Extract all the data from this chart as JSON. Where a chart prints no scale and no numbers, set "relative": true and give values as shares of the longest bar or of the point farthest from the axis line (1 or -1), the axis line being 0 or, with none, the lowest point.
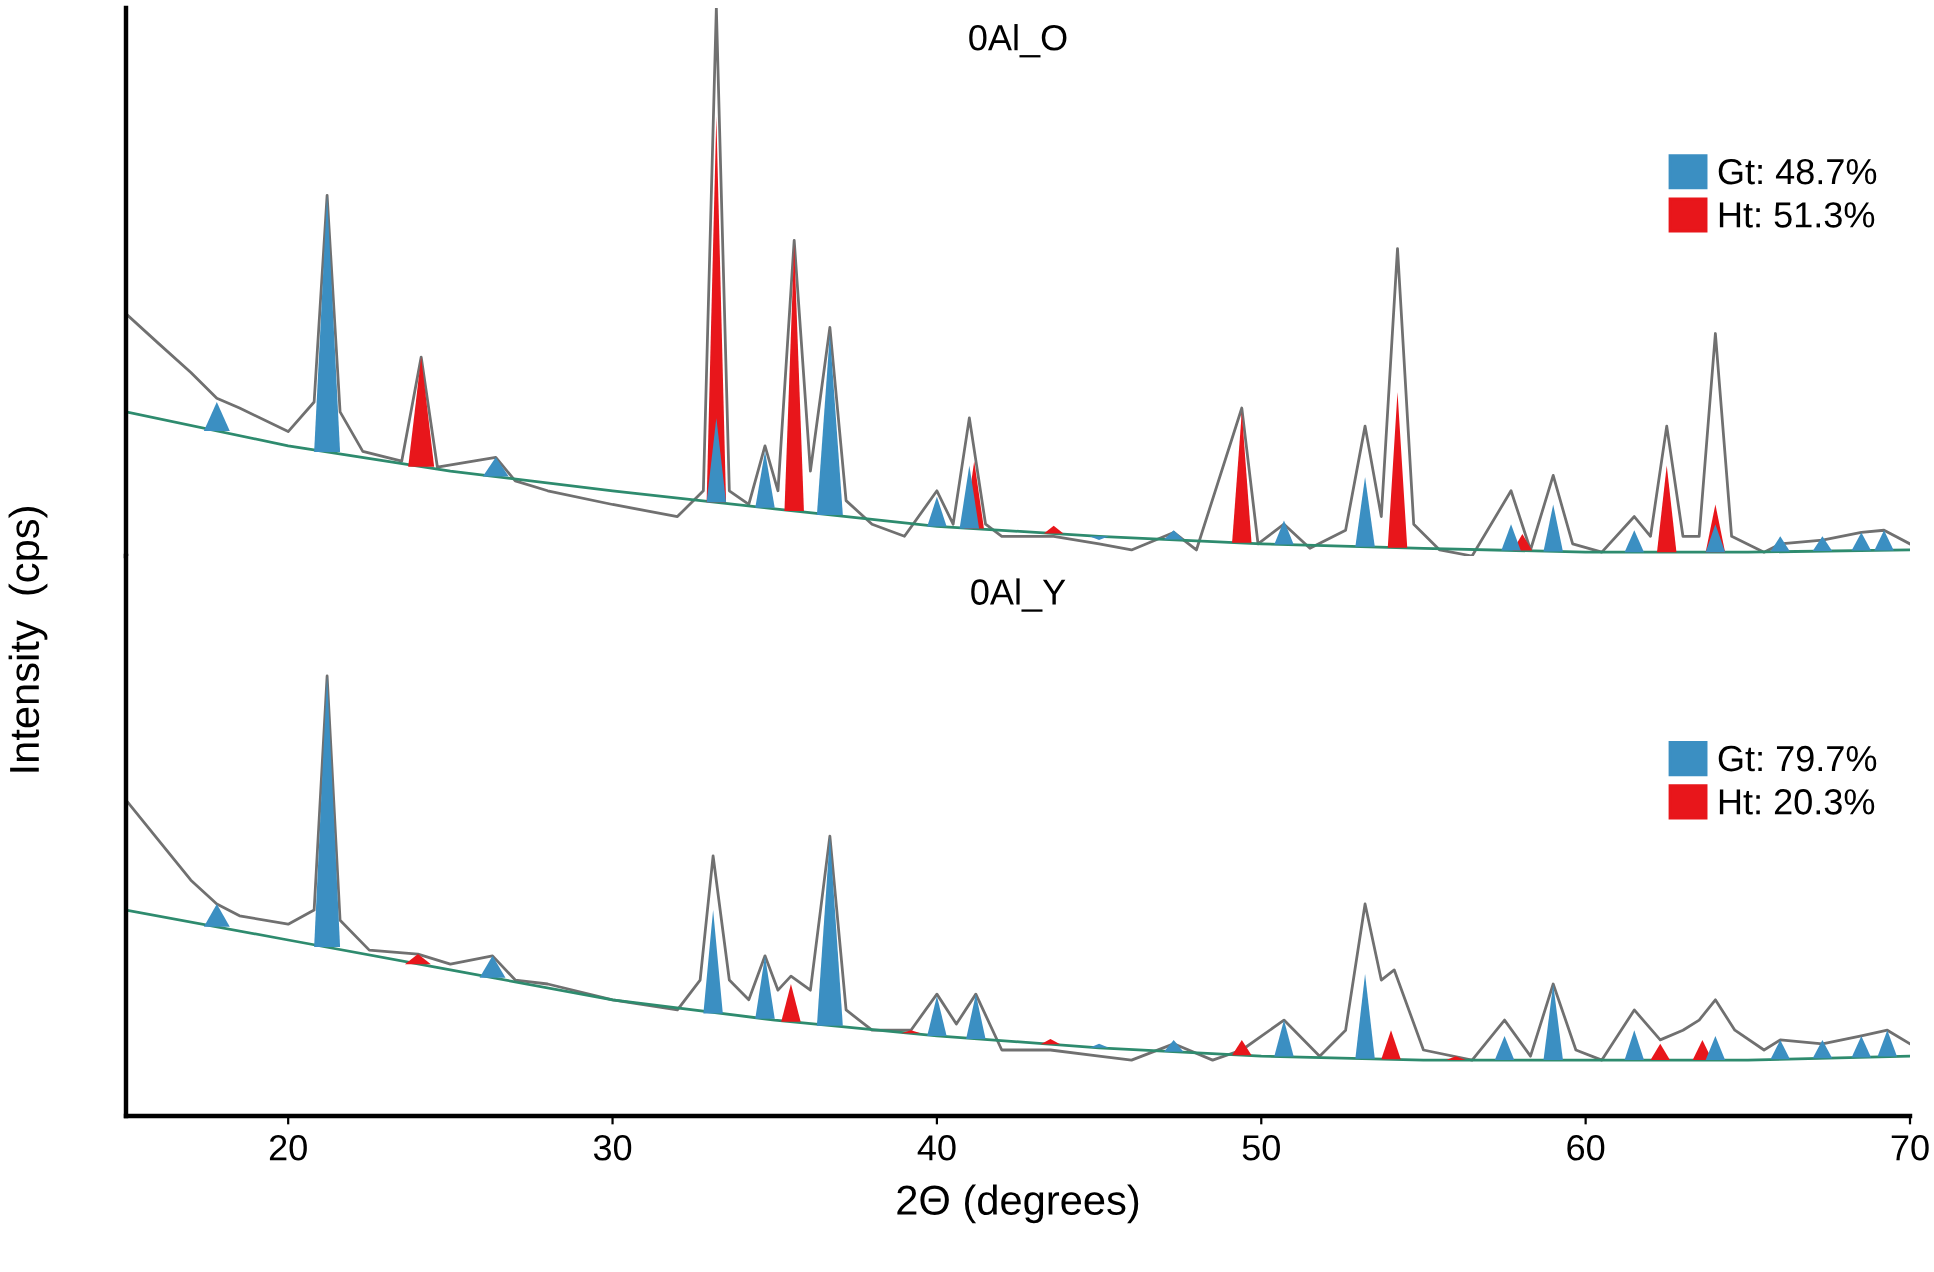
{
  "chart_data": [
    {
      "type": "area",
      "title": "0Al_O",
      "ylabel": "Intensity  (cps)",
      "relative": true,
      "xlim": [
        15,
        70
      ],
      "tick_labels": false,
      "legend": "top right",
      "grid": false,
      "series": [
        {
          "type": "line",
          "color": "#707070",
          "x": [
            15,
            16,
            17,
            17.8,
            18.5,
            20,
            20.8,
            21.2,
            21.6,
            22.3,
            23.5,
            24.1,
            24.6,
            26.4,
            27,
            28,
            30,
            32,
            32.8,
            33.2,
            33.6,
            34.2,
            34.7,
            35.1,
            35.6,
            36.1,
            36.7,
            37.2,
            38,
            39,
            40,
            40.5,
            41,
            41.5,
            42,
            43.6,
            45,
            46,
            47.3,
            48,
            49.4,
            49.9,
            50.7,
            51.5,
            52.6,
            53.2,
            53.7,
            54.2,
            54.7,
            55.5,
            56.5,
            57.7,
            58.3,
            59,
            59.6,
            60.5,
            61.5,
            62,
            62.5,
            63,
            63.5,
            64,
            64.5,
            65.5,
            66,
            67.3,
            68.5,
            69.2,
            70
          ],
          "values": [
            0.442,
            0.388,
            0.335,
            0.288,
            0.27,
            0.227,
            0.281,
            0.658,
            0.263,
            0.191,
            0.173,
            0.363,
            0.162,
            0.18,
            0.137,
            0.119,
            0.094,
            0.072,
            0.119,
            1.0,
            0.119,
            0.094,
            0.201,
            0.119,
            0.576,
            0.155,
            0.417,
            0.101,
            0.058,
            0.036,
            0.119,
            0.058,
            0.252,
            0.058,
            0.036,
            0.036,
            0.022,
            0.011,
            0.043,
            0.011,
            0.27,
            0.022,
            0.058,
            0.014,
            0.047,
            0.237,
            0.072,
            0.561,
            0.058,
            0.011,
            0.0,
            0.119,
            0.011,
            0.147,
            0.022,
            0.007,
            0.072,
            0.036,
            0.237,
            0.036,
            0.036,
            0.406,
            0.036,
            0.007,
            0.022,
            0.029,
            0.043,
            0.047,
            0.022
          ]
        },
        {
          "name": "Ht: 51.3%",
          "color": "#e8161b",
          "x": [
            23.7,
            24.1,
            24.5,
            24.55,
            32.9,
            33.2,
            33.5,
            33.55,
            35.3,
            35.6,
            35.9,
            35.95,
            40.85,
            41.15,
            41.45,
            41.5,
            43.3,
            43.6,
            43.9,
            43.95,
            49.1,
            49.4,
            49.7,
            49.75,
            53.9,
            54.2,
            54.5,
            54.55,
            57.75,
            58.05,
            58.35,
            58.4,
            62.2,
            62.5,
            62.8,
            62.85,
            63.7,
            64,
            64.3
          ],
          "values": [
            0.163,
            0.363,
            0.163,
            null,
            0.098,
            0.802,
            0.098,
            null,
            0.082,
            0.568,
            0.082,
            null,
            0.05,
            0.173,
            0.05,
            null,
            0.041,
            0.055,
            0.041,
            null,
            0.024,
            0.263,
            0.024,
            null,
            0.015,
            0.299,
            0.015,
            null,
            0.01,
            0.04,
            0.01,
            null,
            0.007,
            0.165,
            0.007,
            null,
            0.007,
            0.094,
            0.007
          ]
        },
        {
          "name": "Gt: 48.7%",
          "color": "#3b8fc2",
          "x": [
            17.4,
            17.8,
            18.2,
            18.25,
            20.8,
            21.2,
            21.6,
            21.65,
            26,
            26.4,
            26.8,
            26.85,
            32.9,
            33.2,
            33.5,
            33.55,
            34.4,
            34.7,
            35,
            35.05,
            36.3,
            36.7,
            37.1,
            37.15,
            39.7,
            40,
            40.3,
            40.35,
            40.7,
            41,
            41.3,
            41.35,
            44.7,
            45,
            45.3,
            45.35,
            47,
            47.3,
            47.6,
            47.65,
            50.4,
            50.7,
            51,
            51.05,
            52.9,
            53.2,
            53.5,
            53.55,
            57.4,
            57.7,
            58,
            58.05,
            58.7,
            59,
            59.3,
            59.35,
            61.2,
            61.5,
            61.8,
            61.85,
            63.7,
            64,
            64.3,
            64.35,
            65.7,
            66,
            66.3,
            66.35,
            67,
            67.3,
            67.6,
            67.65,
            68.2,
            68.5,
            68.8,
            68.85,
            68.9,
            69.2,
            69.5
          ],
          "values": [
            0.228,
            0.281,
            0.228,
            null,
            0.19,
            0.658,
            0.19,
            null,
            0.145,
            0.18,
            0.145,
            null,
            0.098,
            0.252,
            0.098,
            null,
            0.088,
            0.191,
            0.088,
            null,
            0.075,
            0.406,
            0.075,
            null,
            0.054,
            0.108,
            0.054,
            null,
            0.05,
            0.165,
            0.05,
            null,
            0.036,
            0.029,
            0.036,
            null,
            0.03,
            0.047,
            0.03,
            null,
            0.021,
            0.065,
            0.021,
            null,
            0.017,
            0.144,
            0.017,
            null,
            0.01,
            0.058,
            0.01,
            null,
            0.008,
            0.094,
            0.008,
            null,
            0.007,
            0.047,
            0.007,
            null,
            0.007,
            0.058,
            0.007,
            null,
            0.008,
            0.036,
            0.008,
            null,
            0.009,
            0.036,
            0.009,
            null,
            0.01,
            0.043,
            0.01,
            null,
            0.01,
            0.047,
            0.01
          ]
        },
        {
          "type": "line",
          "color": "#2e8b6e",
          "x": [
            15,
            20,
            25,
            30,
            35,
            40,
            45,
            50,
            55,
            60,
            65,
            70
          ],
          "values": [
            0.263,
            0.201,
            0.155,
            0.119,
            0.086,
            0.054,
            0.036,
            0.022,
            0.014,
            0.007,
            0.007,
            0.011
          ]
        }
      ]
    },
    {
      "type": "area",
      "title": "0Al_Y",
      "xlabel": "2Θ (degrees)",
      "relative": true,
      "xlim": [
        15,
        70
      ],
      "xticks": [
        20,
        30,
        40,
        50,
        60,
        70
      ],
      "tick_labels": "x",
      "legend": "top right",
      "grid": false,
      "series": [
        {
          "type": "line",
          "color": "#707070",
          "x": [
            15,
            16,
            17,
            17.8,
            18.5,
            20,
            20.8,
            21.2,
            21.6,
            22.5,
            24,
            25,
            26.3,
            27,
            28,
            30,
            32,
            32.7,
            33.1,
            33.6,
            34.2,
            34.7,
            35.1,
            35.5,
            36.1,
            36.7,
            37.2,
            38,
            39.2,
            40,
            40.6,
            41.2,
            42,
            43.5,
            45,
            46,
            47.3,
            48.5,
            49.4,
            50.7,
            51.8,
            52.6,
            53.2,
            53.7,
            54.1,
            55,
            56.5,
            57.5,
            58.3,
            59,
            59.7,
            60.5,
            61.5,
            62.3,
            63,
            63.5,
            64,
            64.6,
            65.5,
            66,
            67.3,
            68.5,
            69.3,
            70
          ],
          "values": [
            0.718,
            0.627,
            0.536,
            0.482,
            0.455,
            0.436,
            0.468,
            1.0,
            0.445,
            0.377,
            0.368,
            0.345,
            0.364,
            0.309,
            0.3,
            0.264,
            0.241,
            0.309,
            0.591,
            0.309,
            0.264,
            0.364,
            0.286,
            0.318,
            0.286,
            0.636,
            0.241,
            0.195,
            0.195,
            0.277,
            0.209,
            0.277,
            0.15,
            0.15,
            0.136,
            0.127,
            0.164,
            0.127,
            0.15,
            0.218,
            0.136,
            0.195,
            0.482,
            0.309,
            0.332,
            0.15,
            0.127,
            0.218,
            0.136,
            0.3,
            0.15,
            0.127,
            0.241,
            0.173,
            0.195,
            0.218,
            0.264,
            0.195,
            0.15,
            0.173,
            0.164,
            0.182,
            0.195,
            0.164
          ]
        },
        {
          "name": "Ht: 20.3%",
          "color": "#e8161b",
          "x": [
            23.6,
            24,
            24.4,
            24.45,
            35.2,
            35.5,
            35.8,
            35.85,
            38.9,
            39.2,
            39.5,
            39.55,
            43.2,
            43.5,
            43.8,
            43.85,
            49.1,
            49.4,
            49.7,
            49.75,
            53.7,
            54,
            54.3,
            54.35,
            55.7,
            56,
            56.3,
            56.35,
            62,
            62.3,
            62.6,
            62.65,
            63.3,
            63.6,
            63.9
          ],
          "values": [
            0.345,
            0.368,
            0.345,
            null,
            0.214,
            0.3,
            0.214,
            null,
            0.188,
            0.195,
            0.188,
            null,
            0.163,
            0.175,
            0.163,
            null,
            0.138,
            0.173,
            0.138,
            null,
            0.129,
            0.195,
            0.129,
            null,
            0.127,
            0.136,
            0.127,
            null,
            0.127,
            0.164,
            0.127,
            null,
            0.127,
            0.173,
            0.127
          ]
        },
        {
          "name": "Gt: 79.7%",
          "color": "#3b8fc2",
          "x": [
            17.4,
            17.8,
            18.2,
            18.25,
            20.8,
            21.2,
            21.6,
            21.65,
            25.9,
            26.3,
            26.7,
            26.75,
            32.8,
            33.1,
            33.4,
            33.45,
            34.4,
            34.7,
            35,
            35.05,
            36.3,
            36.7,
            37.1,
            37.15,
            39.7,
            40,
            40.3,
            40.35,
            40.9,
            41.2,
            41.5,
            41.55,
            44.7,
            45,
            45.3,
            45.35,
            47,
            47.3,
            47.6,
            47.65,
            50.4,
            50.7,
            51,
            51.05,
            52.9,
            53.2,
            53.5,
            53.55,
            57.2,
            57.5,
            57.8,
            57.85,
            58.7,
            59,
            59.3,
            59.35,
            61.2,
            61.5,
            61.8,
            61.85,
            63.7,
            64,
            64.3,
            64.35,
            65.7,
            66,
            66.3,
            66.35,
            67,
            67.3,
            67.6,
            67.65,
            68.2,
            68.5,
            68.8,
            68.85,
            69,
            69.3,
            69.6
          ],
          "values": [
            0.43,
            0.482,
            0.43,
            null,
            0.384,
            1.0,
            0.384,
            null,
            0.314,
            0.364,
            0.314,
            null,
            0.233,
            0.468,
            0.233,
            null,
            0.221,
            0.364,
            0.221,
            null,
            0.205,
            0.636,
            0.205,
            null,
            0.182,
            0.273,
            0.182,
            null,
            0.175,
            0.277,
            0.175,
            null,
            0.155,
            0.164,
            0.155,
            null,
            0.146,
            0.173,
            0.146,
            null,
            0.135,
            0.218,
            0.135,
            null,
            0.13,
            0.323,
            0.13,
            null,
            0.127,
            0.182,
            0.127,
            null,
            0.127,
            0.3,
            0.127,
            null,
            0.127,
            0.195,
            0.127,
            null,
            0.127,
            0.182,
            0.127,
            null,
            0.129,
            0.173,
            0.129,
            null,
            0.131,
            0.173,
            0.131,
            null,
            0.133,
            0.182,
            0.133,
            null,
            0.135,
            0.195,
            0.135
          ]
        },
        {
          "type": "line",
          "color": "#2e8b6e",
          "x": [
            15,
            20,
            25,
            30,
            35,
            40,
            45,
            50,
            55,
            60,
            65,
            70
          ],
          "values": [
            0.468,
            0.4,
            0.332,
            0.264,
            0.218,
            0.182,
            0.155,
            0.136,
            0.127,
            0.127,
            0.127,
            0.136
          ]
        }
      ]
    }
  ]
}
